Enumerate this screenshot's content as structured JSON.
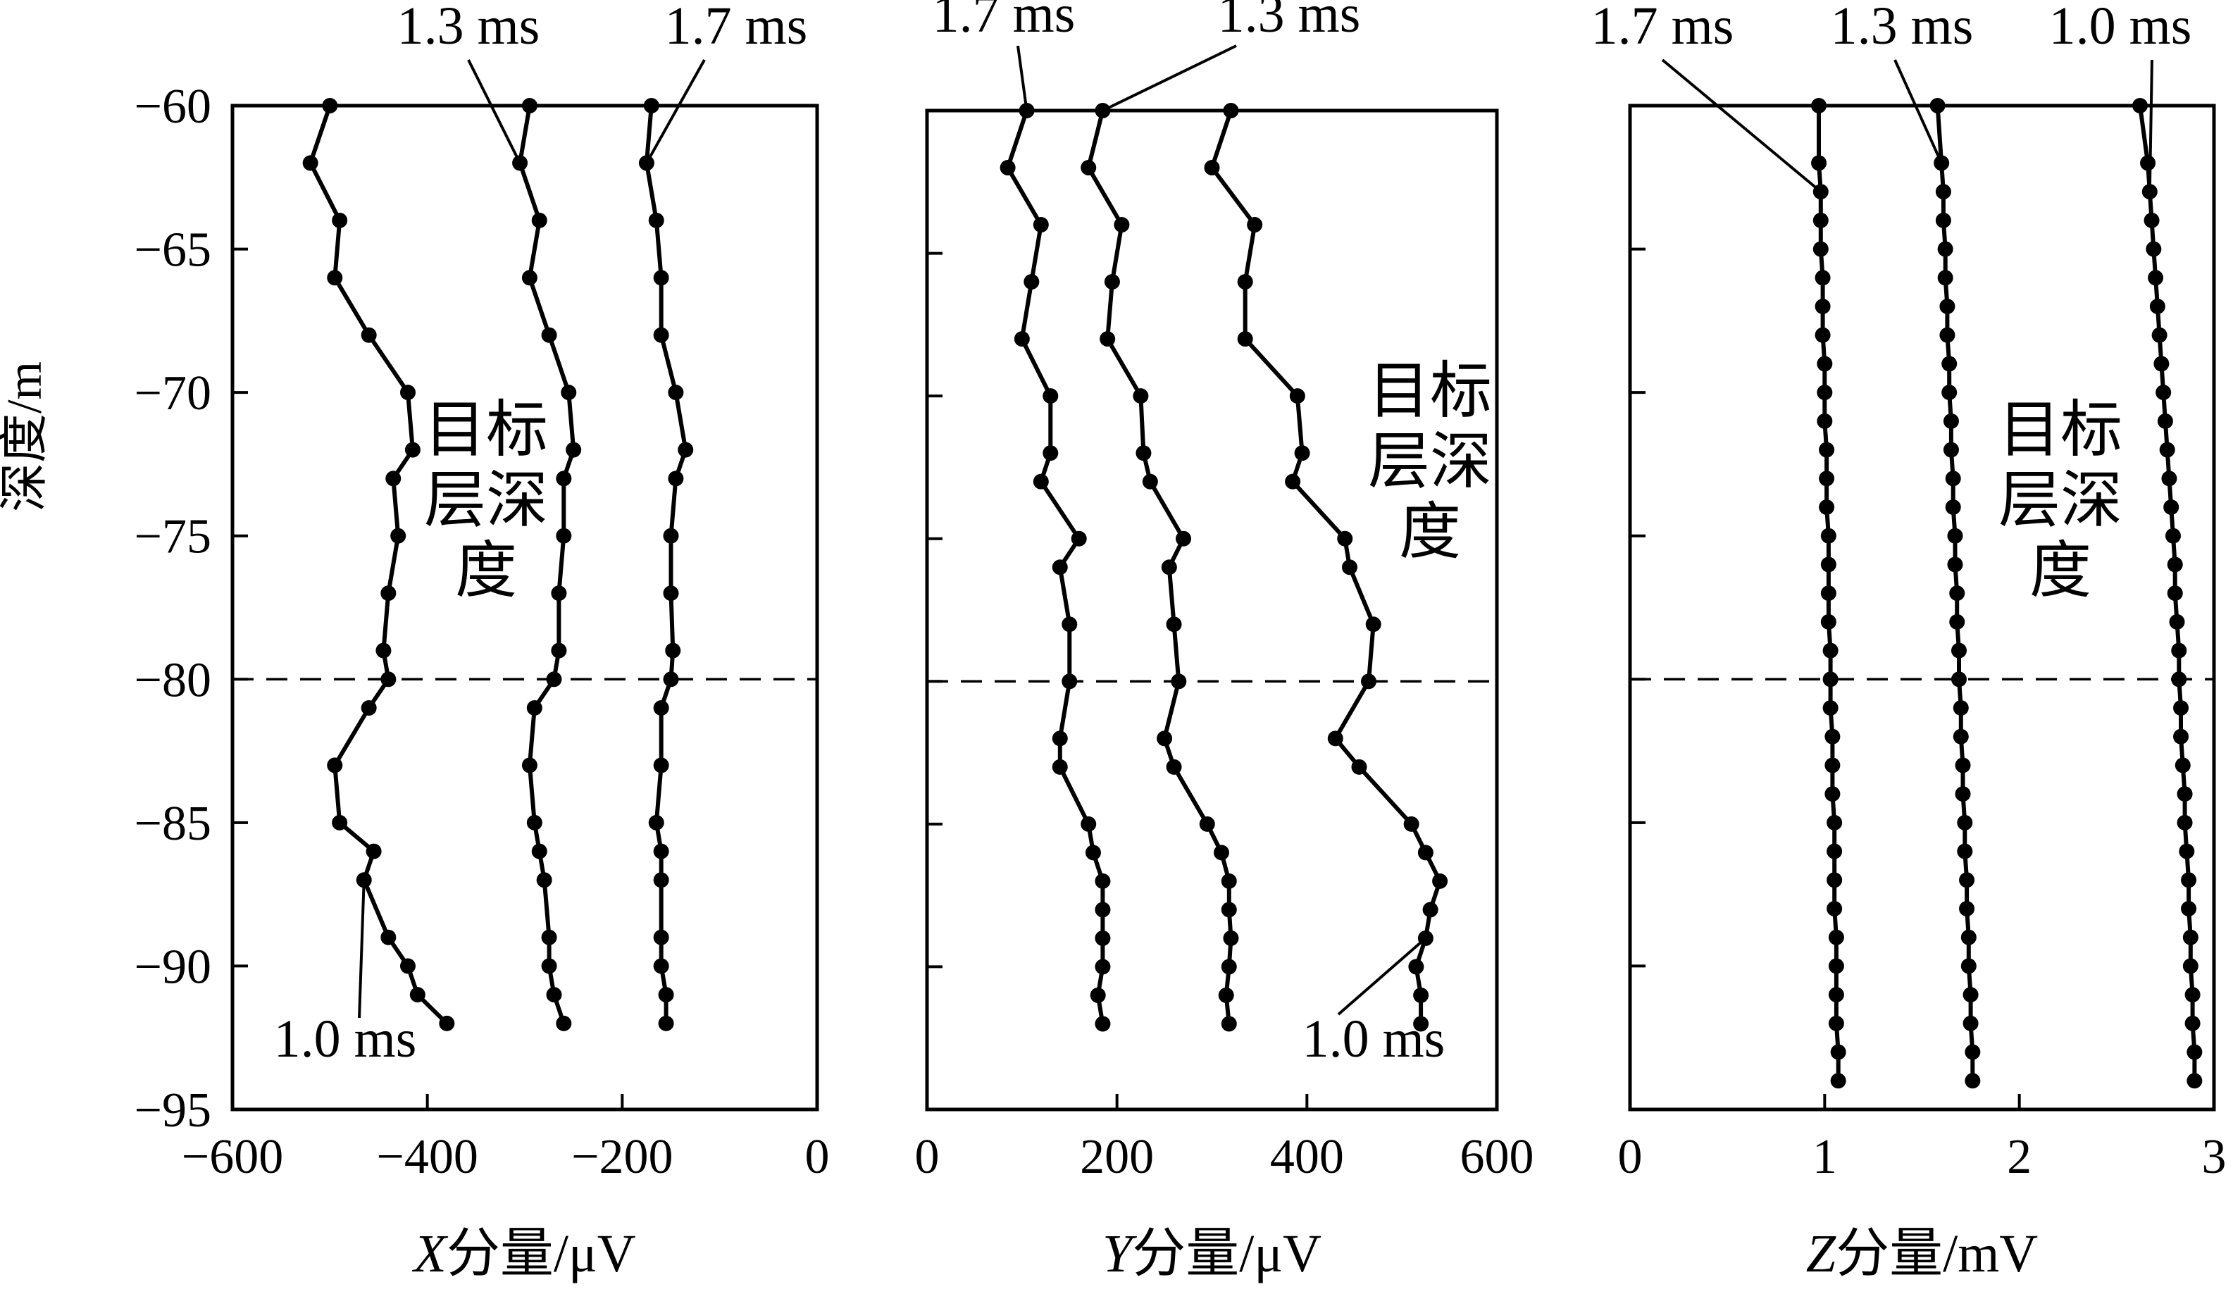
{
  "figure": {
    "ylabel": "深度/m",
    "target_label_lines": [
      "目标",
      "层深",
      "度"
    ]
  },
  "chart_data": [
    {
      "type": "line",
      "panel": "X",
      "xlabel_italic": "X",
      "xlabel_rest": "分量/μV",
      "xlim": [
        -600,
        0
      ],
      "xticks": [
        -600,
        -400,
        -200,
        0
      ],
      "xtick_labels": [
        "−600",
        "−400",
        "−200",
        "0"
      ],
      "ylim": [
        -95,
        -60
      ],
      "yticks": [
        -60,
        -65,
        -70,
        -75,
        -80,
        -85,
        -90,
        -95
      ],
      "ytick_labels": [
        "−60",
        "−65",
        "−70",
        "−75",
        "−80",
        "−85",
        "−90",
        "−95"
      ],
      "reference_line_y": -80,
      "depth": [
        -60,
        -62,
        -64,
        -66,
        -68,
        -70,
        -72,
        -73,
        -75,
        -77,
        -79,
        -80,
        -81,
        -83,
        -85,
        -86,
        -87,
        -89,
        -90,
        -91,
        -92
      ],
      "series": [
        {
          "name": "1.0 ms",
          "values": [
            -500,
            -520,
            -490,
            -495,
            -460,
            -420,
            -415,
            -435,
            -430,
            -440,
            -445,
            -440,
            -460,
            -495,
            -490,
            -455,
            -465,
            -440,
            -420,
            -410,
            -380
          ]
        },
        {
          "name": "1.3 ms",
          "values": [
            -295,
            -305,
            -285,
            -295,
            -275,
            -255,
            -250,
            -260,
            -260,
            -265,
            -265,
            -270,
            -290,
            -295,
            -290,
            -285,
            -280,
            -275,
            -275,
            -270,
            -260
          ]
        },
        {
          "name": "1.7 ms",
          "values": [
            -170,
            -175,
            -165,
            -160,
            -160,
            -145,
            -135,
            -145,
            -150,
            -150,
            -148,
            -150,
            -160,
            -160,
            -165,
            -160,
            -160,
            -160,
            -160,
            -155,
            -155
          ]
        }
      ],
      "annotations": [
        {
          "label": "1.0 ms",
          "series": "1.0 ms"
        },
        {
          "label": "1.3 ms",
          "series": "1.3 ms"
        },
        {
          "label": "1.7 ms",
          "series": "1.7 ms"
        }
      ]
    },
    {
      "type": "line",
      "panel": "Y",
      "xlabel_italic": "Y",
      "xlabel_rest": "分量/μV",
      "xlim": [
        0,
        600
      ],
      "xticks": [
        0,
        200,
        400,
        600
      ],
      "xtick_labels": [
        "0",
        "200",
        "400",
        "600"
      ],
      "ylim": [
        -95,
        -60
      ],
      "yticks": [
        -60,
        -65,
        -70,
        -75,
        -80,
        -85,
        -90,
        -95
      ],
      "reference_line_y": -80,
      "depth": [
        -60,
        -62,
        -64,
        -66,
        -68,
        -70,
        -72,
        -73,
        -75,
        -76,
        -78,
        -80,
        -82,
        -83,
        -85,
        -86,
        -87,
        -88,
        -89,
        -90,
        -91,
        -92
      ],
      "series": [
        {
          "name": "1.0 ms",
          "values": [
            320,
            300,
            345,
            335,
            335,
            390,
            395,
            385,
            440,
            445,
            470,
            465,
            430,
            455,
            510,
            525,
            540,
            530,
            525,
            515,
            520,
            520
          ]
        },
        {
          "name": "1.3 ms",
          "values": [
            185,
            170,
            205,
            195,
            190,
            225,
            228,
            235,
            270,
            255,
            260,
            265,
            250,
            260,
            295,
            310,
            318,
            318,
            320,
            318,
            315,
            318
          ]
        },
        {
          "name": "1.7 ms",
          "values": [
            105,
            85,
            120,
            110,
            100,
            130,
            130,
            120,
            160,
            140,
            150,
            150,
            140,
            140,
            170,
            175,
            185,
            185,
            185,
            185,
            180,
            185
          ]
        }
      ],
      "annotations": [
        {
          "label": "1.0 ms",
          "series": "1.0 ms"
        },
        {
          "label": "1.3 ms",
          "series": "1.3 ms"
        },
        {
          "label": "1.7 ms",
          "series": "1.7 ms"
        }
      ]
    },
    {
      "type": "line",
      "panel": "Z",
      "xlabel_italic": "Z",
      "xlabel_rest": "分量/mV",
      "xlim": [
        0,
        3
      ],
      "xticks": [
        0,
        1,
        2,
        3
      ],
      "xtick_labels": [
        "0",
        "1",
        "2",
        "3"
      ],
      "ylim": [
        -95,
        -60
      ],
      "yticks": [
        -60,
        -65,
        -70,
        -75,
        -80,
        -85,
        -90,
        -95
      ],
      "reference_line_y": -80,
      "depth": [
        -60,
        -62,
        -63,
        -64,
        -65,
        -66,
        -67,
        -68,
        -69,
        -70,
        -71,
        -72,
        -73,
        -74,
        -75,
        -76,
        -77,
        -78,
        -79,
        -80,
        -81,
        -82,
        -83,
        -84,
        -85,
        -86,
        -87,
        -88,
        -89,
        -90,
        -91,
        -92,
        -93,
        -94
      ],
      "series": [
        {
          "name": "1.0 ms",
          "values": [
            2.62,
            2.66,
            2.67,
            2.68,
            2.69,
            2.7,
            2.71,
            2.72,
            2.73,
            2.74,
            2.75,
            2.76,
            2.77,
            2.78,
            2.79,
            2.8,
            2.8,
            2.81,
            2.82,
            2.82,
            2.83,
            2.83,
            2.84,
            2.85,
            2.85,
            2.86,
            2.87,
            2.87,
            2.88,
            2.88,
            2.89,
            2.89,
            2.9,
            2.9
          ]
        },
        {
          "name": "1.3 ms",
          "values": [
            1.58,
            1.6,
            1.61,
            1.61,
            1.62,
            1.62,
            1.63,
            1.63,
            1.64,
            1.64,
            1.65,
            1.65,
            1.66,
            1.66,
            1.67,
            1.67,
            1.68,
            1.68,
            1.69,
            1.69,
            1.7,
            1.7,
            1.71,
            1.71,
            1.72,
            1.72,
            1.73,
            1.73,
            1.74,
            1.74,
            1.75,
            1.75,
            1.76,
            1.76
          ]
        },
        {
          "name": "1.7 ms",
          "values": [
            0.97,
            0.97,
            0.98,
            0.98,
            0.98,
            0.99,
            0.99,
            0.99,
            1.0,
            1.0,
            1.0,
            1.01,
            1.01,
            1.01,
            1.02,
            1.02,
            1.02,
            1.02,
            1.03,
            1.03,
            1.03,
            1.04,
            1.04,
            1.04,
            1.05,
            1.05,
            1.05,
            1.05,
            1.06,
            1.06,
            1.06,
            1.06,
            1.07,
            1.07
          ]
        }
      ],
      "annotations": [
        {
          "label": "1.7 ms",
          "series": "1.7 ms"
        },
        {
          "label": "1.3 ms",
          "series": "1.3 ms"
        },
        {
          "label": "1.0 ms",
          "series": "1.0 ms"
        }
      ]
    }
  ]
}
